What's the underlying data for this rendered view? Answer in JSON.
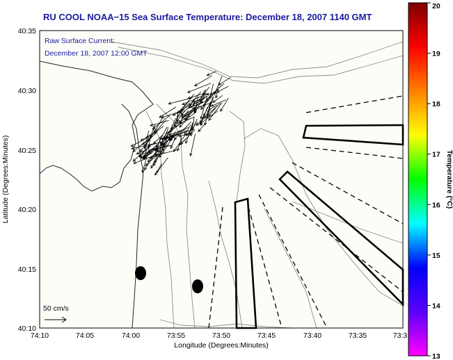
{
  "chart_data": {
    "type": "map",
    "title": "RU COOL  NOAA−15  Sea Surface Temperature:  December 18, 2007 1140 GMT",
    "annotation": {
      "line1": "Raw Surface Current:",
      "line2": "December 18, 2007 12:00 GMT"
    },
    "xlabel": "Longitude (Degrees:Minutes)",
    "ylabel": "Latitude (Degrees:Minutes)",
    "x_ticks": [
      "74:10",
      "74:05",
      "74:00",
      "73:55",
      "73:50",
      "73:45",
      "73:40",
      "73:35",
      "73:3"
    ],
    "y_ticks": [
      "40:35",
      "40:30",
      "40:25",
      "40:20",
      "40:15",
      "40:10"
    ],
    "xlim_minutes_west": [
      4450,
      4410
    ],
    "ylim_minutes": [
      2410,
      2435
    ],
    "scale_arrow_label": "50 cm/s",
    "colorbar": {
      "label": "Temperature (°C)",
      "range": [
        13,
        20
      ],
      "ticks": [
        "20",
        "19",
        "18",
        "17",
        "16",
        "15",
        "14",
        "13"
      ],
      "colors": [
        "#ff00ff",
        "#5a00ff",
        "#0000ff",
        "#00ffff",
        "#00ff00",
        "#ffff00",
        "#ff8000",
        "#ff0000",
        "#7a0000"
      ]
    },
    "grid": false,
    "background_color": "#fdfdf8"
  }
}
